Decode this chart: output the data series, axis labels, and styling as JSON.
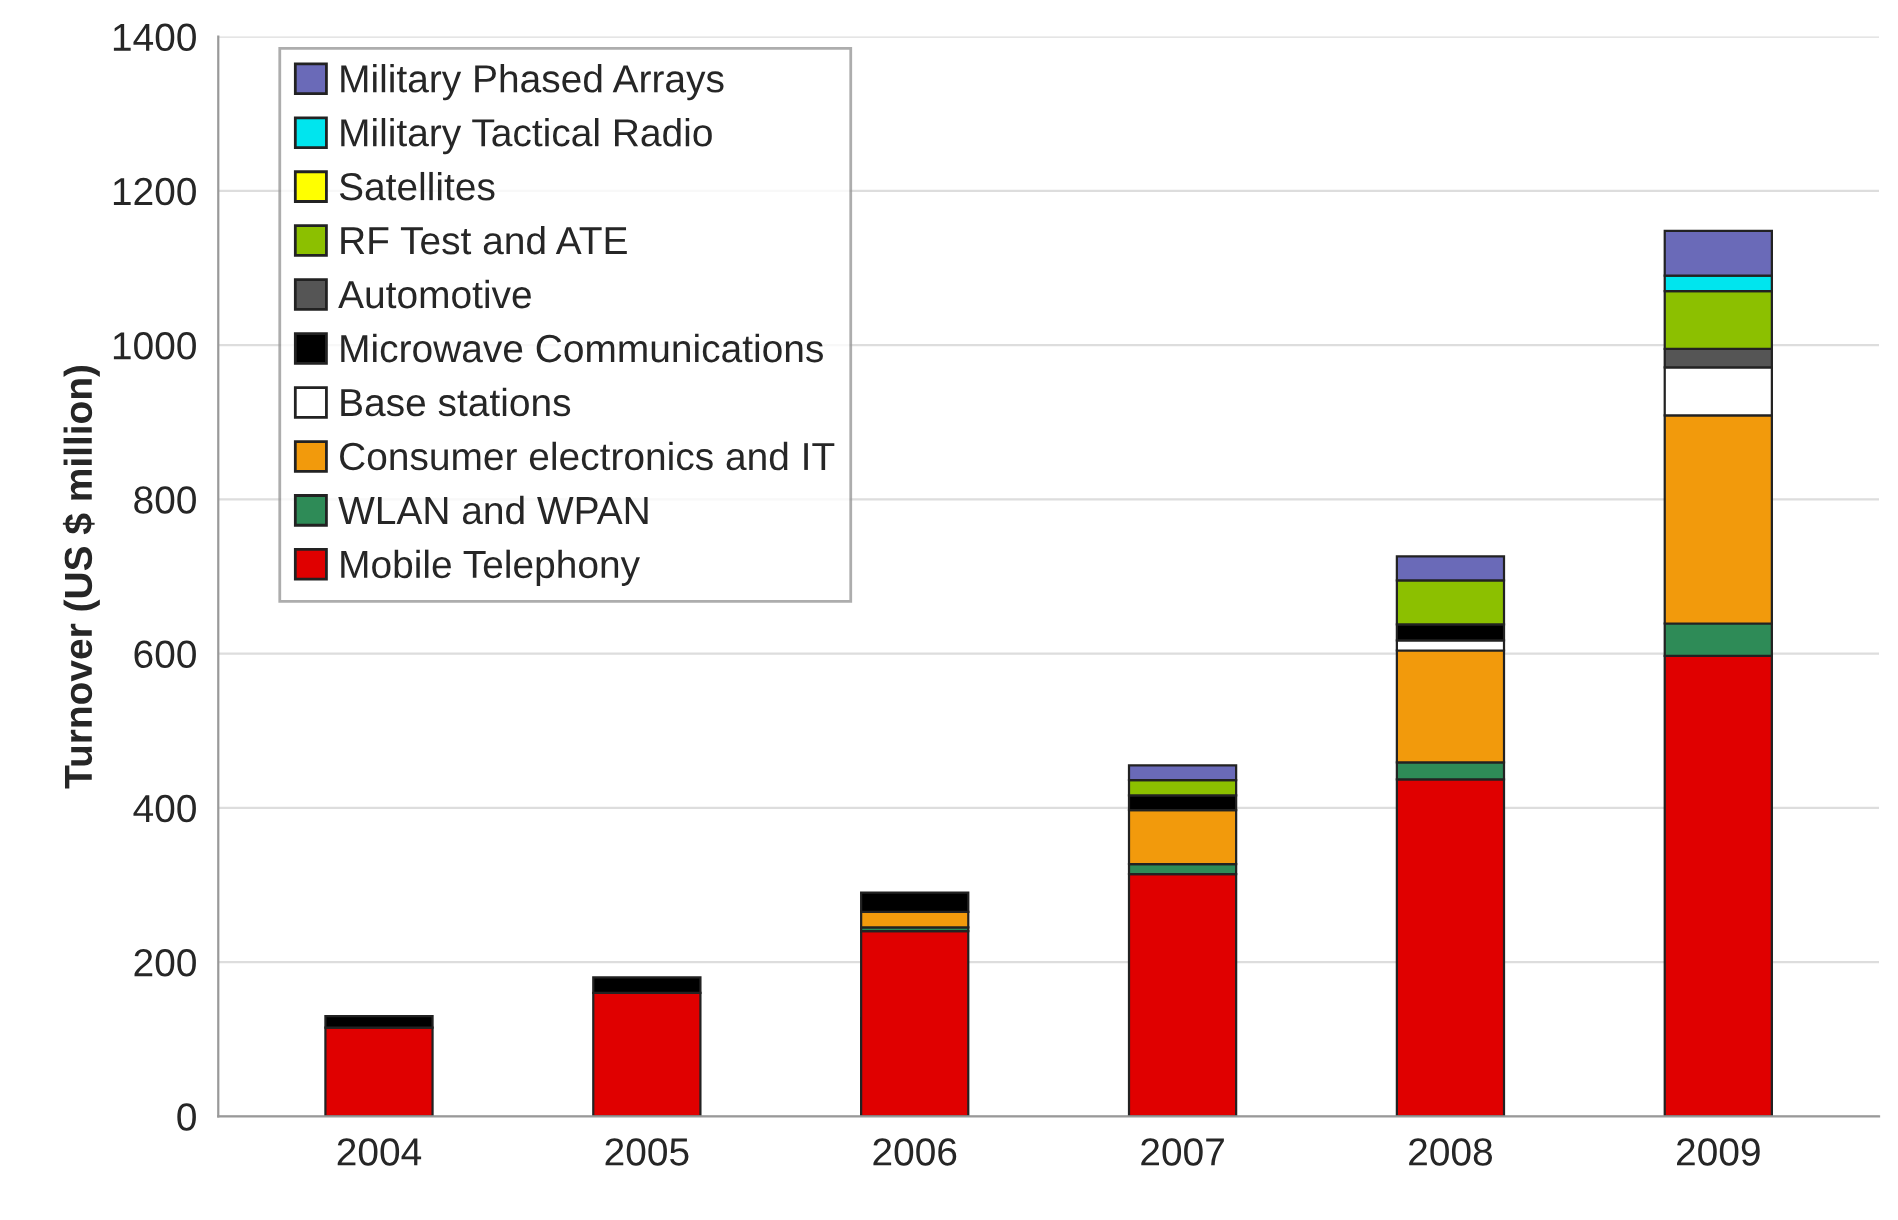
{
  "chart_data": {
    "type": "bar",
    "stacked": true,
    "ylabel": "Turnover (US $ million)",
    "categories": [
      "2004",
      "2005",
      "2006",
      "2007",
      "2008",
      "2009"
    ],
    "ylim": [
      0,
      1400
    ],
    "yticks": [
      0,
      200,
      400,
      600,
      800,
      1000,
      1200,
      1400
    ],
    "grid": "y",
    "legend": "top left",
    "series": [
      {
        "name": "Mobile Telephony",
        "color": "#e00000",
        "values": [
          115,
          160,
          240,
          314,
          437,
          597
        ]
      },
      {
        "name": "WLAN and WPAN",
        "color": "#2e8b57",
        "values": [
          0,
          0,
          5,
          13,
          22,
          42
        ]
      },
      {
        "name": "Consumer electronics and IT",
        "color": "#f29a0c",
        "values": [
          0,
          0,
          20,
          70,
          145,
          270
        ]
      },
      {
        "name": "Base stations",
        "color": "#ffffff",
        "values": [
          0,
          0,
          0,
          0,
          13,
          62
        ]
      },
      {
        "name": "Microwave Communications",
        "color": "#000000",
        "values": [
          15,
          20,
          25,
          19,
          21,
          0
        ]
      },
      {
        "name": "Automotive",
        "color": "#555555",
        "values": [
          0,
          0,
          0,
          0,
          0,
          24
        ]
      },
      {
        "name": "RF Test and ATE",
        "color": "#8cc000",
        "values": [
          0,
          0,
          0,
          20,
          57,
          75
        ]
      },
      {
        "name": "Satellites",
        "color": "#ffff00",
        "values": [
          0,
          0,
          0,
          0,
          0,
          0
        ]
      },
      {
        "name": "Military Tactical Radio",
        "color": "#00e5ee",
        "values": [
          0,
          0,
          0,
          0,
          0,
          20
        ]
      },
      {
        "name": "Military Phased Arrays",
        "color": "#6a6ab8",
        "values": [
          0,
          0,
          0,
          19,
          31,
          58
        ]
      }
    ]
  }
}
